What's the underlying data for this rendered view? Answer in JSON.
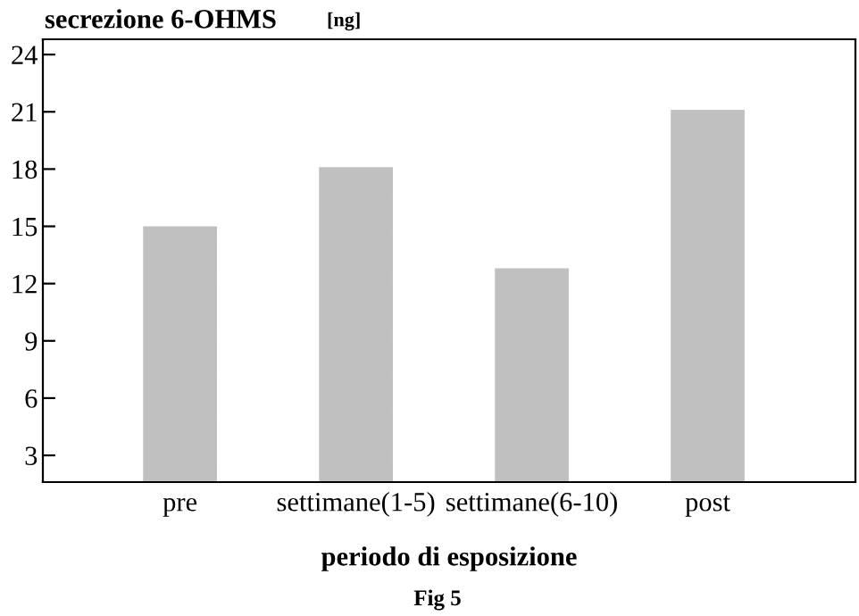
{
  "chart_data": {
    "type": "bar",
    "title": "secrezione 6-OHMS",
    "ylabel": "[ng]",
    "xlabel": "periodo di esposizione",
    "annotations": [
      "Fig 5"
    ],
    "categories": [
      "pre",
      "settimane(1-5)",
      "settimane(6-10)",
      "post"
    ],
    "values": [
      15.0,
      18.1,
      12.8,
      21.1
    ],
    "color": "#c0c0c0",
    "ylim": [
      1.6,
      24.8
    ],
    "yticks": [
      3,
      6,
      9,
      12,
      15,
      18,
      21,
      24
    ],
    "grid": false
  }
}
